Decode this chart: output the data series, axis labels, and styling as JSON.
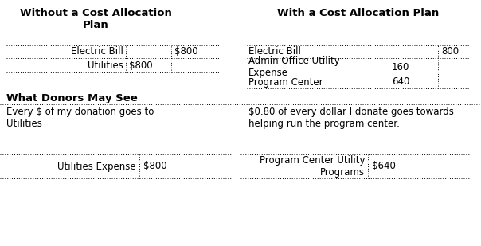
{
  "title_left": "Without a Cost Allocation\nPlan",
  "title_right": "With a Cost Allocation Plan",
  "bg_color": "#ffffff",
  "text_color": "#000000",
  "figsize": [
    6.04,
    3.09
  ],
  "dpi": 100,
  "left_table": {
    "rows": [
      {
        "label": "Electric Bill",
        "v1": "",
        "v2": "$800"
      },
      {
        "label": "Utilities",
        "v1": "$800",
        "v2": ""
      }
    ]
  },
  "right_table": {
    "rows": [
      {
        "label": "Electric Bill",
        "v1": "",
        "v2": "800"
      },
      {
        "label": "Admin Office Utility\nExpense",
        "v1": "160",
        "v2": ""
      },
      {
        "label": "Program Center",
        "v1": "640",
        "v2": ""
      }
    ]
  },
  "donors_header": "What Donors May See",
  "donors_left": "Every $ of my donation goes to\nUtilities",
  "donors_right": "$0.80 of every dollar I donate goes towards\nhelping run the program center.",
  "bot_left_lbl": "Utilities Expense",
  "bot_left_val": "$800",
  "bot_right_lbl": "Program Center Utility\nPrograms",
  "bot_right_val": "$640"
}
